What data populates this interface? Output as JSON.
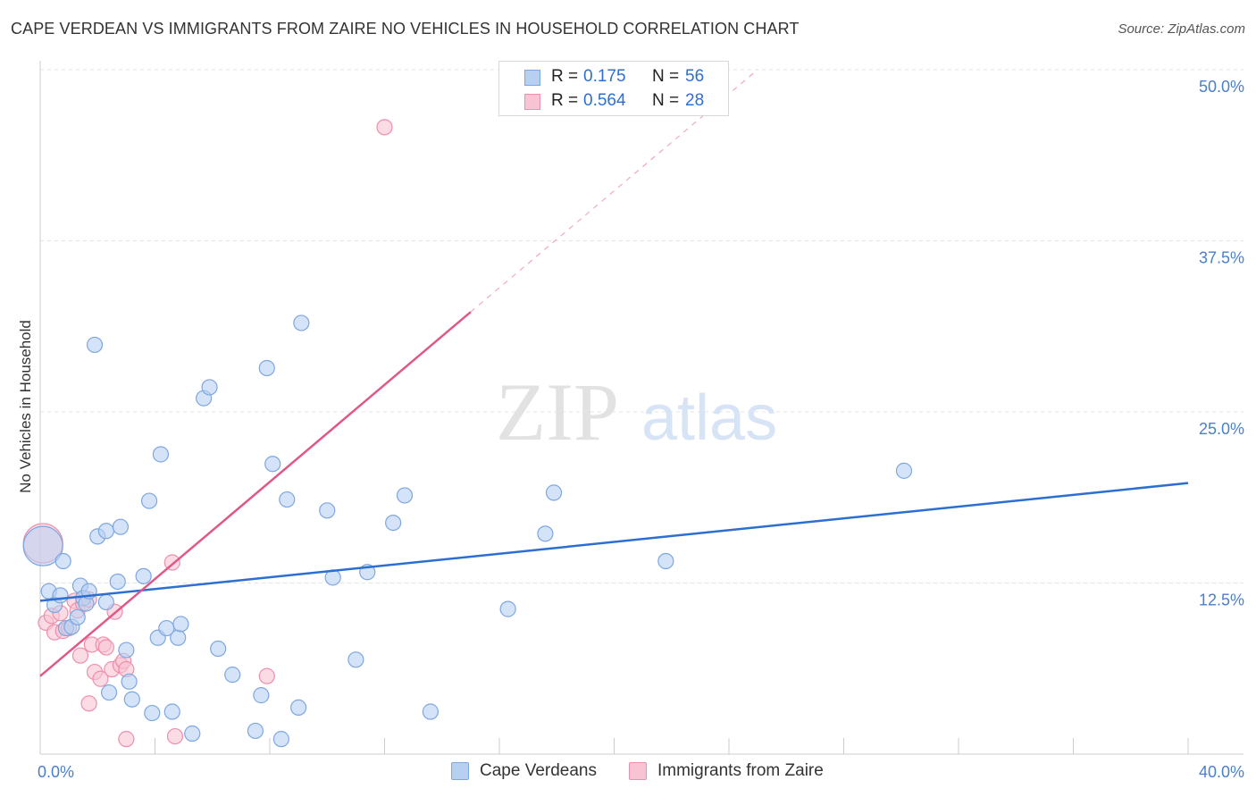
{
  "title": "CAPE VERDEAN VS IMMIGRANTS FROM ZAIRE NO VEHICLES IN HOUSEHOLD CORRELATION CHART",
  "source": "Source: ZipAtlas.com",
  "watermark": {
    "zip": "ZIP",
    "atlas": "atlas"
  },
  "legend": {
    "rows": [
      {
        "r_label": "R =",
        "r_value": "0.175",
        "n_label": "N =",
        "n_value": "56",
        "fill": "#b7d0f2",
        "stroke": "#7ea7e0"
      },
      {
        "r_label": "R =",
        "r_value": "0.564",
        "n_label": "N =",
        "n_value": "28",
        "fill": "#f8c3d2",
        "stroke": "#ee8fab"
      }
    ]
  },
  "bottom_legend": [
    {
      "label": "Cape Verdeans",
      "fill": "#b7d0f2",
      "stroke": "#7ea7e0"
    },
    {
      "label": "Immigrants from Zaire",
      "fill": "#f8c3d2",
      "stroke": "#ee8fab"
    }
  ],
  "chart_data": {
    "type": "scatter",
    "title": "CAPE VERDEAN VS IMMIGRANTS FROM ZAIRE NO VEHICLES IN HOUSEHOLD CORRELATION CHART",
    "xlabel": "",
    "ylabel": "No Vehicles in Household",
    "xlim": [
      0,
      40
    ],
    "ylim": [
      0,
      50
    ],
    "x_tick_labels": [
      "0.0%",
      "40.0%"
    ],
    "y_ticks": [
      12.5,
      25.0,
      37.5,
      50.0
    ],
    "y_tick_labels": [
      "12.5%",
      "25.0%",
      "37.5%",
      "50.0%"
    ],
    "grid": true,
    "legend_position": "top-center",
    "colors": {
      "cape_verdeans": "#2c6fd1",
      "zaire": "#e0588a",
      "axis_label": "#4a7fcb"
    },
    "series": [
      {
        "name": "Cape Verdeans",
        "color": "#7ea7e0",
        "fill": "#b7d0f2",
        "trend": {
          "x": [
            0,
            40
          ],
          "y": [
            11.2,
            19.8
          ]
        },
        "points": [
          {
            "x": 0.1,
            "y": 15.2,
            "big": true
          },
          {
            "x": 0.3,
            "y": 11.9
          },
          {
            "x": 0.5,
            "y": 10.9
          },
          {
            "x": 0.7,
            "y": 11.6
          },
          {
            "x": 0.8,
            "y": 14.1
          },
          {
            "x": 0.9,
            "y": 9.2
          },
          {
            "x": 1.1,
            "y": 9.3
          },
          {
            "x": 1.3,
            "y": 10.0
          },
          {
            "x": 1.4,
            "y": 12.3
          },
          {
            "x": 1.5,
            "y": 11.4
          },
          {
            "x": 1.6,
            "y": 11.0
          },
          {
            "x": 1.7,
            "y": 11.9
          },
          {
            "x": 1.9,
            "y": 29.9
          },
          {
            "x": 2.0,
            "y": 15.9
          },
          {
            "x": 2.3,
            "y": 16.3
          },
          {
            "x": 2.3,
            "y": 11.1
          },
          {
            "x": 2.4,
            "y": 4.5
          },
          {
            "x": 2.7,
            "y": 12.6
          },
          {
            "x": 2.8,
            "y": 16.6
          },
          {
            "x": 3.0,
            "y": 7.6
          },
          {
            "x": 3.1,
            "y": 5.3
          },
          {
            "x": 3.2,
            "y": 4.0
          },
          {
            "x": 3.6,
            "y": 13.0
          },
          {
            "x": 3.8,
            "y": 18.5
          },
          {
            "x": 3.9,
            "y": 3.0
          },
          {
            "x": 4.1,
            "y": 8.5
          },
          {
            "x": 4.2,
            "y": 21.9
          },
          {
            "x": 4.4,
            "y": 9.2
          },
          {
            "x": 4.6,
            "y": 3.1
          },
          {
            "x": 4.8,
            "y": 8.5
          },
          {
            "x": 4.9,
            "y": 9.5
          },
          {
            "x": 5.3,
            "y": 1.5
          },
          {
            "x": 5.7,
            "y": 26.0
          },
          {
            "x": 5.9,
            "y": 26.8
          },
          {
            "x": 6.2,
            "y": 7.7
          },
          {
            "x": 6.7,
            "y": 5.8
          },
          {
            "x": 7.5,
            "y": 1.7
          },
          {
            "x": 7.7,
            "y": 4.3
          },
          {
            "x": 7.9,
            "y": 28.2
          },
          {
            "x": 8.1,
            "y": 21.2
          },
          {
            "x": 8.4,
            "y": 1.1
          },
          {
            "x": 8.6,
            "y": 18.6
          },
          {
            "x": 9.0,
            "y": 3.4
          },
          {
            "x": 9.1,
            "y": 31.5
          },
          {
            "x": 10.0,
            "y": 17.8
          },
          {
            "x": 10.2,
            "y": 12.9
          },
          {
            "x": 11.0,
            "y": 6.9
          },
          {
            "x": 11.4,
            "y": 13.3
          },
          {
            "x": 12.3,
            "y": 16.9
          },
          {
            "x": 12.7,
            "y": 18.9
          },
          {
            "x": 13.6,
            "y": 3.1
          },
          {
            "x": 16.3,
            "y": 10.6
          },
          {
            "x": 17.6,
            "y": 16.1
          },
          {
            "x": 17.9,
            "y": 19.1
          },
          {
            "x": 21.8,
            "y": 14.1
          },
          {
            "x": 30.1,
            "y": 20.7
          }
        ]
      },
      {
        "name": "Immigrants from Zaire",
        "color": "#ee8fab",
        "fill": "#f8c3d2",
        "trend": {
          "x": [
            0,
            15
          ],
          "y": [
            5.7,
            32.3
          ],
          "dashed_to": {
            "x": 25,
            "y": 50
          }
        },
        "points": [
          {
            "x": 0.1,
            "y": 15.4,
            "big": true
          },
          {
            "x": 0.2,
            "y": 9.6
          },
          {
            "x": 0.4,
            "y": 10.1
          },
          {
            "x": 0.5,
            "y": 8.9
          },
          {
            "x": 0.7,
            "y": 10.3
          },
          {
            "x": 0.8,
            "y": 9.0
          },
          {
            "x": 1.0,
            "y": 9.2
          },
          {
            "x": 1.2,
            "y": 11.2
          },
          {
            "x": 1.3,
            "y": 10.5
          },
          {
            "x": 1.4,
            "y": 7.2
          },
          {
            "x": 1.5,
            "y": 11.0
          },
          {
            "x": 1.7,
            "y": 11.3
          },
          {
            "x": 1.7,
            "y": 3.7
          },
          {
            "x": 1.8,
            "y": 8.0
          },
          {
            "x": 1.9,
            "y": 6.0
          },
          {
            "x": 2.1,
            "y": 5.5
          },
          {
            "x": 2.2,
            "y": 8.0
          },
          {
            "x": 2.3,
            "y": 7.8
          },
          {
            "x": 2.5,
            "y": 6.2
          },
          {
            "x": 2.6,
            "y": 10.4
          },
          {
            "x": 2.8,
            "y": 6.5
          },
          {
            "x": 2.9,
            "y": 6.8
          },
          {
            "x": 3.0,
            "y": 6.2
          },
          {
            "x": 3.0,
            "y": 1.1
          },
          {
            "x": 4.6,
            "y": 14.0
          },
          {
            "x": 4.7,
            "y": 1.3
          },
          {
            "x": 7.9,
            "y": 5.7
          },
          {
            "x": 12.0,
            "y": 45.8
          }
        ]
      }
    ]
  }
}
